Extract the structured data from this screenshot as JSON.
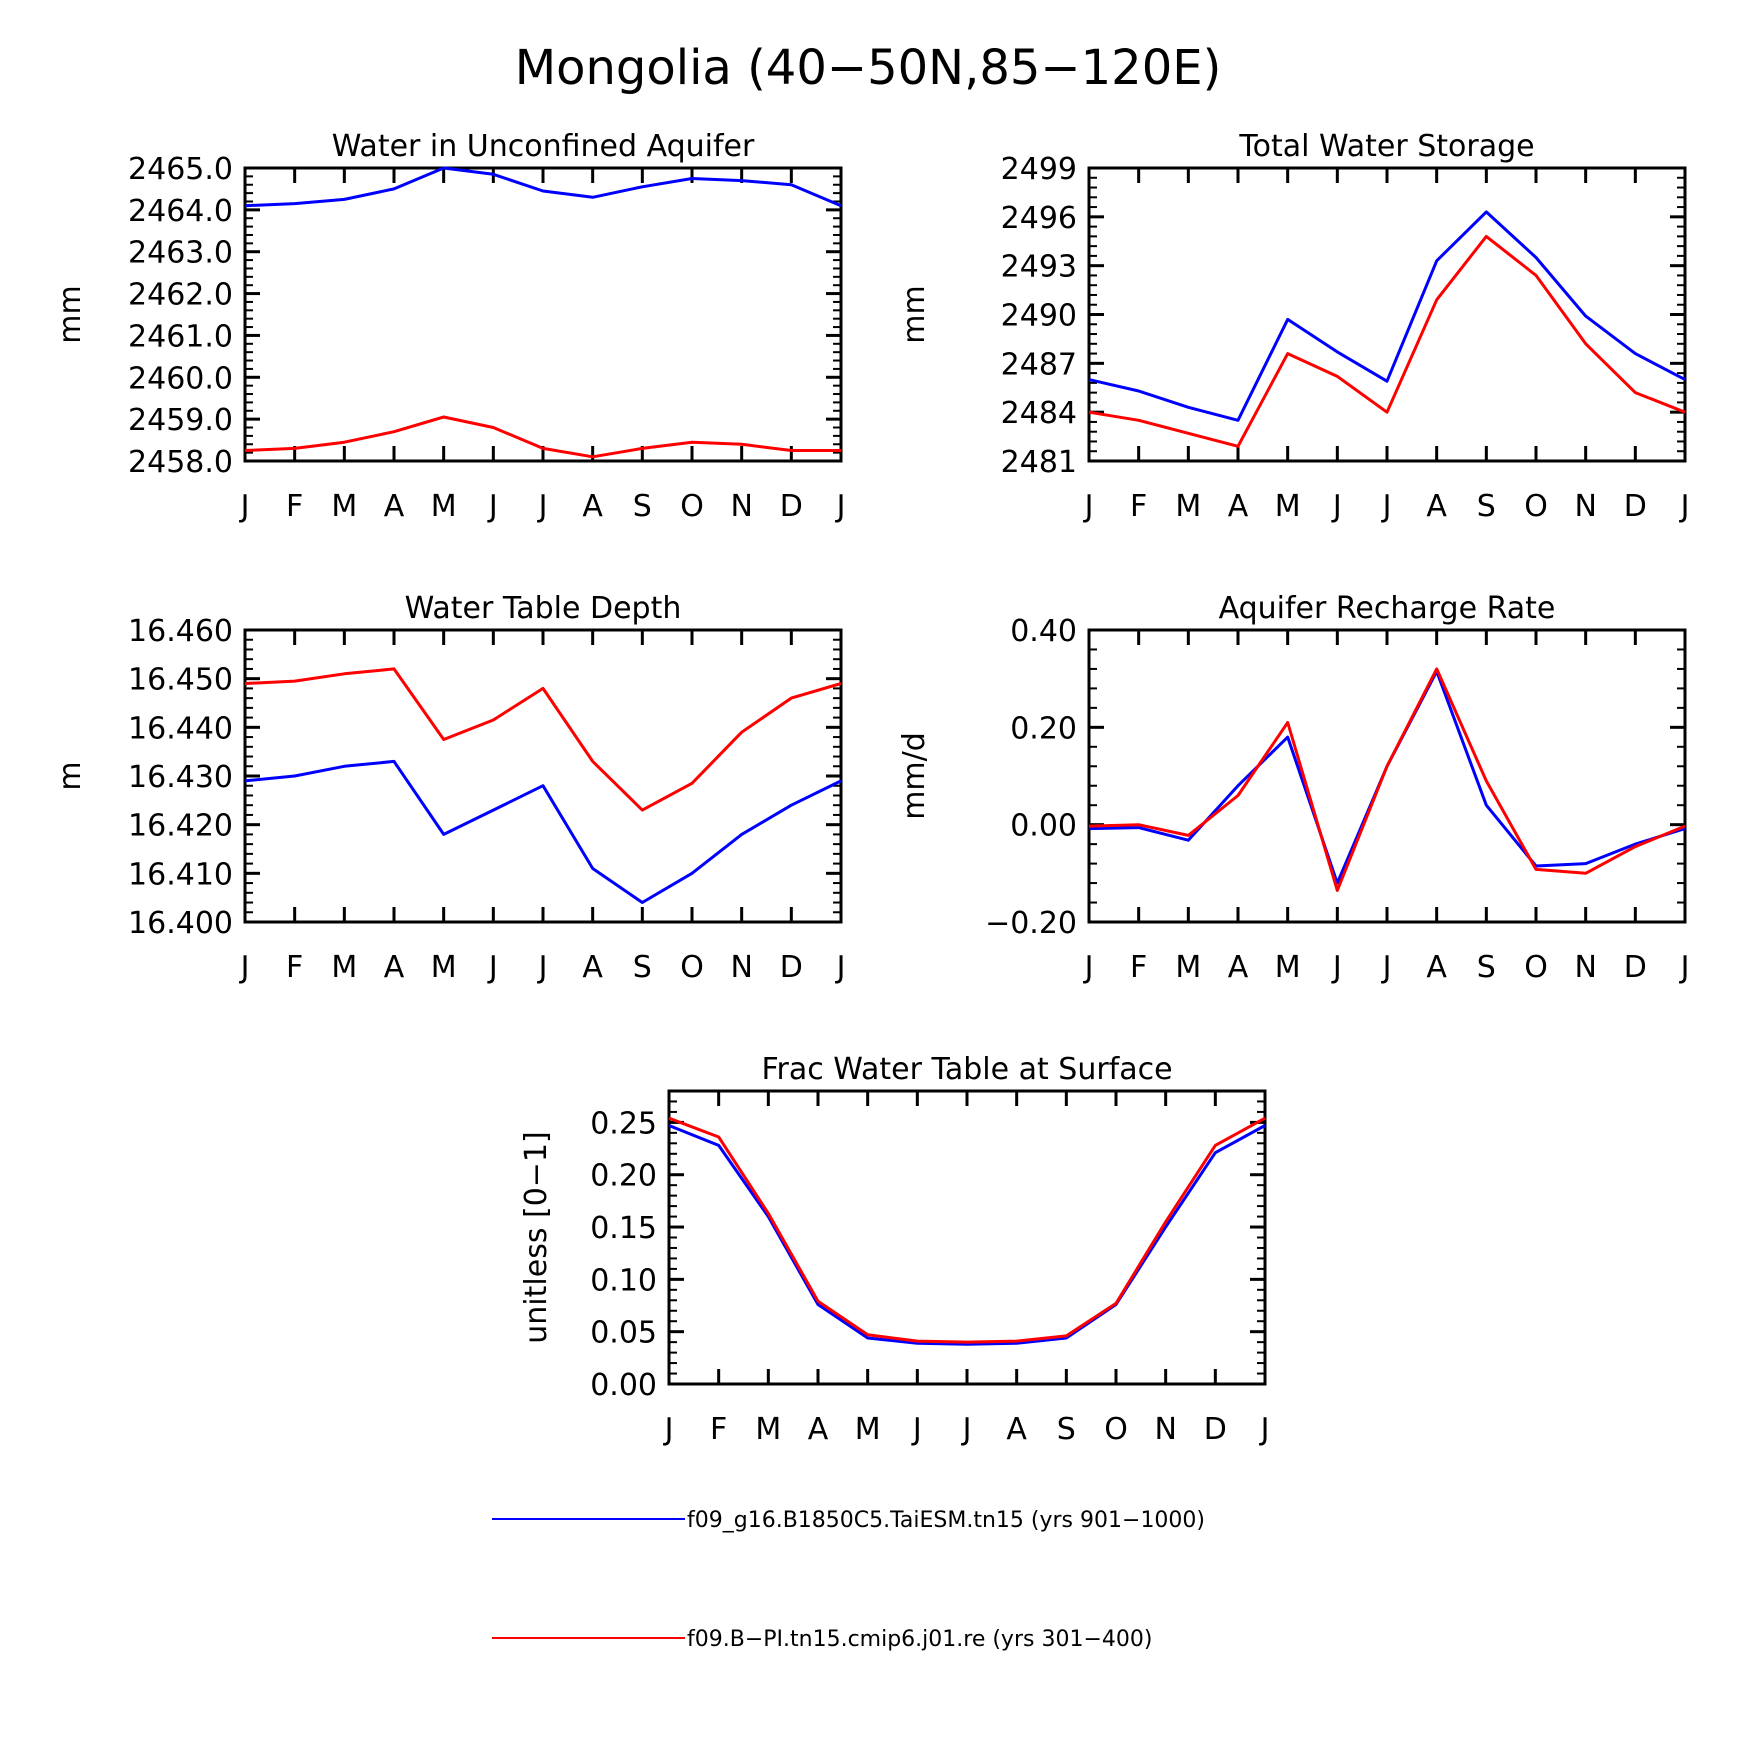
{
  "figure": {
    "title": "Mongolia (40−50N,85−120E)",
    "colors": {
      "series_1": "#0000ff",
      "series_2": "#ff0000",
      "axes": "#000000"
    }
  },
  "legend": {
    "entries": [
      {
        "label": "f09_g16.B1850C5.TaiESM.tn15 (yrs 901−1000)",
        "color": "#0000ff"
      },
      {
        "label": "f09.B−PI.tn15.cmip6.j01.re (yrs 301−400)",
        "color": "#ff0000"
      }
    ]
  },
  "chart_data": [
    {
      "type": "line",
      "title": "Water in Unconfined Aquifer",
      "xlabel": "",
      "ylabel": "mm",
      "categories": [
        "J",
        "F",
        "M",
        "A",
        "M",
        "J",
        "J",
        "A",
        "S",
        "O",
        "N",
        "D",
        "J"
      ],
      "ylim": [
        2458.0,
        2465.0
      ],
      "yticks": [
        2458.0,
        2459.0,
        2460.0,
        2461.0,
        2462.0,
        2463.0,
        2464.0,
        2465.0
      ],
      "ytick_labels": [
        "2458.0",
        "2459.0",
        "2460.0",
        "2461.0",
        "2462.0",
        "2463.0",
        "2464.0",
        "2465.0"
      ],
      "grid": false,
      "series": [
        {
          "color": "#0000ff",
          "values": [
            2464.1,
            2464.15,
            2464.25,
            2464.5,
            2465.0,
            2464.85,
            2464.45,
            2464.3,
            2464.55,
            2464.75,
            2464.7,
            2464.6,
            2464.1
          ]
        },
        {
          "color": "#ff0000",
          "values": [
            2458.25,
            2458.3,
            2458.45,
            2458.7,
            2459.05,
            2458.8,
            2458.3,
            2458.1,
            2458.3,
            2458.45,
            2458.4,
            2458.25,
            2458.25
          ]
        }
      ]
    },
    {
      "type": "line",
      "title": "Total Water Storage",
      "xlabel": "",
      "ylabel": "mm",
      "categories": [
        "J",
        "F",
        "M",
        "A",
        "M",
        "J",
        "J",
        "A",
        "S",
        "O",
        "N",
        "D",
        "J"
      ],
      "ylim": [
        2481,
        2499
      ],
      "yticks": [
        2481,
        2484,
        2487,
        2490,
        2493,
        2496,
        2499
      ],
      "ytick_labels": [
        "2481",
        "2484",
        "2487",
        "2490",
        "2493",
        "2496",
        "2499"
      ],
      "grid": false,
      "series": [
        {
          "color": "#0000ff",
          "values": [
            2486.0,
            2485.3,
            2484.3,
            2483.5,
            2489.7,
            2487.7,
            2485.9,
            2493.3,
            2496.3,
            2493.5,
            2489.9,
            2487.6,
            2486.0
          ]
        },
        {
          "color": "#ff0000",
          "values": [
            2484.0,
            2483.5,
            2482.7,
            2481.9,
            2487.6,
            2486.2,
            2484.0,
            2490.9,
            2494.8,
            2492.4,
            2488.2,
            2485.2,
            2484.0
          ]
        }
      ]
    },
    {
      "type": "line",
      "title": "Water Table Depth",
      "xlabel": "",
      "ylabel": "m",
      "categories": [
        "J",
        "F",
        "M",
        "A",
        "M",
        "J",
        "J",
        "A",
        "S",
        "O",
        "N",
        "D",
        "J"
      ],
      "ylim": [
        16.4,
        16.46
      ],
      "yticks": [
        16.4,
        16.41,
        16.42,
        16.43,
        16.44,
        16.45,
        16.46
      ],
      "ytick_labels": [
        "16.400",
        "16.410",
        "16.420",
        "16.430",
        "16.440",
        "16.450",
        "16.460"
      ],
      "grid": false,
      "series": [
        {
          "color": "#0000ff",
          "values": [
            16.429,
            16.43,
            16.432,
            16.433,
            16.418,
            16.423,
            16.428,
            16.411,
            16.404,
            16.41,
            16.418,
            16.424,
            16.429
          ]
        },
        {
          "color": "#ff0000",
          "values": [
            16.449,
            16.4495,
            16.451,
            16.452,
            16.4375,
            16.4415,
            16.448,
            16.433,
            16.423,
            16.4285,
            16.439,
            16.446,
            16.449
          ]
        }
      ]
    },
    {
      "type": "line",
      "title": "Aquifer Recharge Rate",
      "xlabel": "",
      "ylabel": "mm/d",
      "categories": [
        "J",
        "F",
        "M",
        "A",
        "M",
        "J",
        "J",
        "A",
        "S",
        "O",
        "N",
        "D",
        "J"
      ],
      "ylim": [
        -0.2,
        0.4
      ],
      "yticks": [
        -0.2,
        0.0,
        0.2,
        0.4
      ],
      "ytick_labels": [
        "−0.20",
        "0.00",
        "0.20",
        "0.40"
      ],
      "grid": false,
      "series": [
        {
          "color": "#0000ff",
          "values": [
            -0.008,
            -0.006,
            -0.032,
            0.08,
            0.18,
            -0.12,
            0.12,
            0.315,
            0.04,
            -0.085,
            -0.08,
            -0.04,
            -0.008
          ]
        },
        {
          "color": "#ff0000",
          "values": [
            -0.003,
            0.0,
            -0.022,
            0.06,
            0.21,
            -0.135,
            0.12,
            0.32,
            0.09,
            -0.092,
            -0.1,
            -0.045,
            -0.003
          ]
        }
      ]
    },
    {
      "type": "line",
      "title": "Frac Water Table at Surface",
      "xlabel": "",
      "ylabel": "unitless [0−1]",
      "categories": [
        "J",
        "F",
        "M",
        "A",
        "M",
        "J",
        "J",
        "A",
        "S",
        "O",
        "N",
        "D",
        "J"
      ],
      "ylim": [
        0.0,
        0.28
      ],
      "yticks": [
        0.0,
        0.05,
        0.1,
        0.15,
        0.2,
        0.25
      ],
      "ytick_labels": [
        "0.00",
        "0.05",
        "0.10",
        "0.15",
        "0.20",
        "0.25"
      ],
      "grid": false,
      "series": [
        {
          "color": "#0000ff",
          "values": [
            0.247,
            0.228,
            0.16,
            0.076,
            0.044,
            0.039,
            0.038,
            0.039,
            0.044,
            0.076,
            0.15,
            0.221,
            0.247
          ]
        },
        {
          "color": "#ff0000",
          "values": [
            0.254,
            0.236,
            0.163,
            0.079,
            0.047,
            0.041,
            0.04,
            0.041,
            0.046,
            0.077,
            0.155,
            0.228,
            0.254
          ]
        }
      ]
    }
  ]
}
